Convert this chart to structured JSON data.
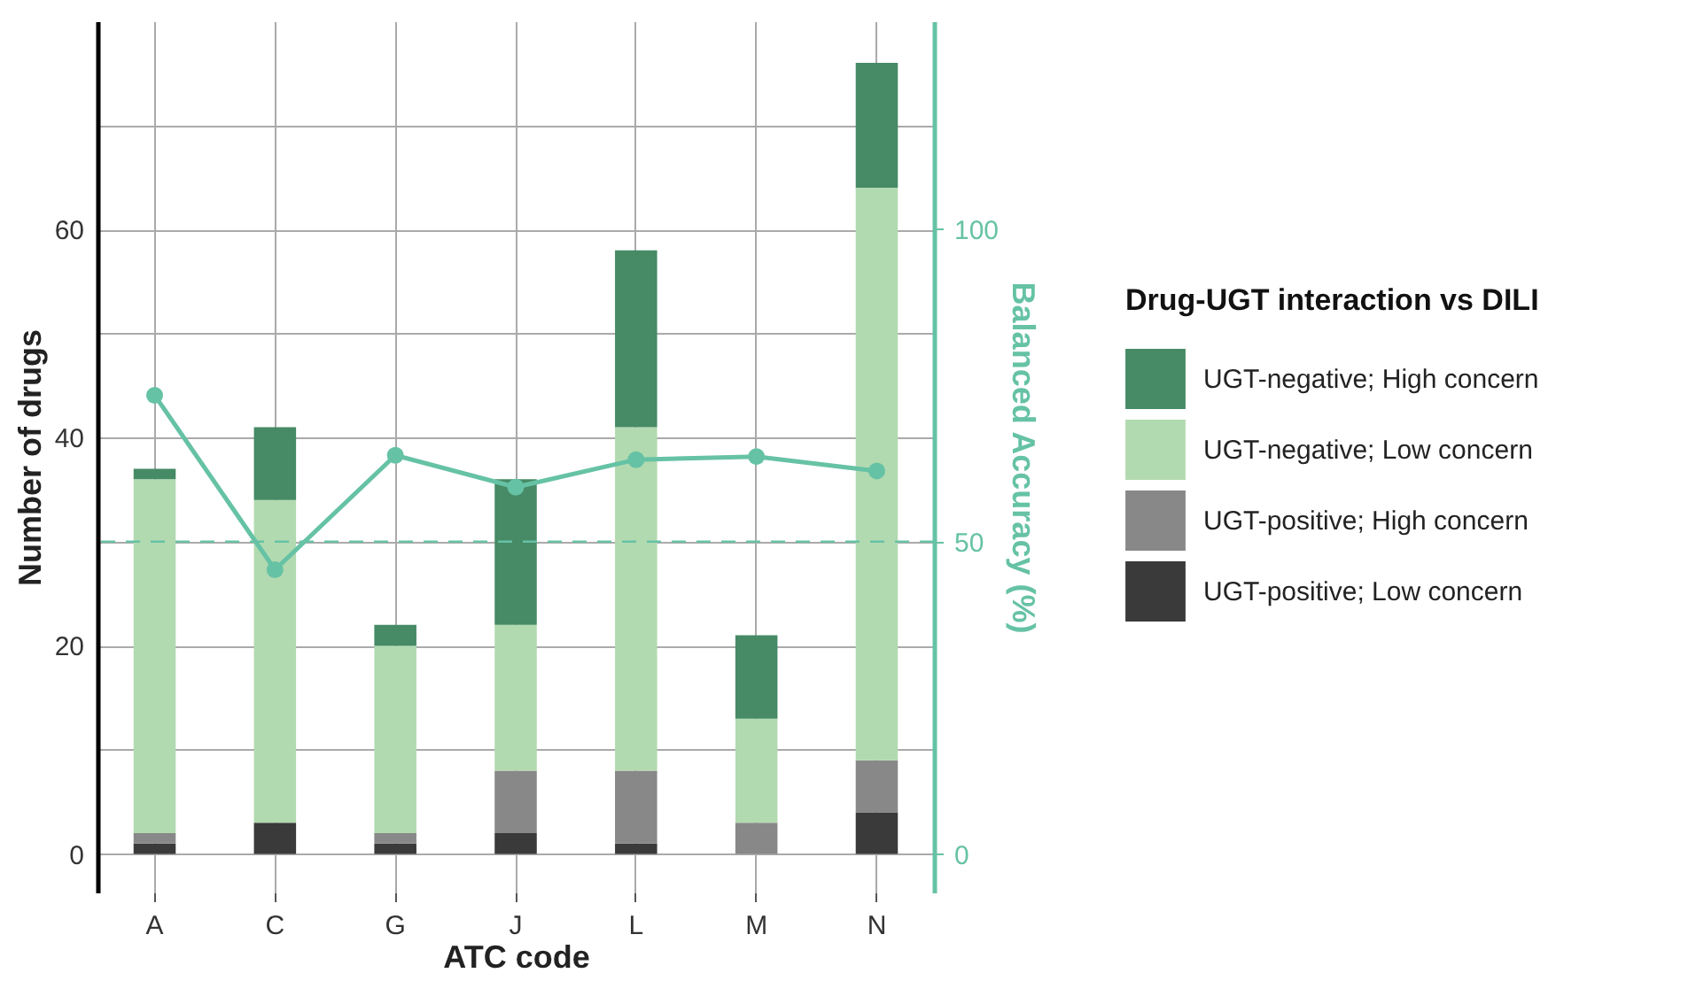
{
  "chart_data": {
    "type": "bar",
    "stacked": true,
    "xlabel": "ATC code",
    "ylabel": "Number of drugs",
    "y2label": "Balanced Accuracy (%)",
    "legend_title": "Drug-UGT interaction vs DILI",
    "categories": [
      "A",
      "C",
      "G",
      "J",
      "L",
      "M",
      "N"
    ],
    "series": [
      {
        "name": "UGT-positive; Low concern",
        "color": "#3a3a3a",
        "values": [
          1,
          3,
          1,
          2,
          1,
          0,
          4
        ]
      },
      {
        "name": "UGT-positive; High concern",
        "color": "#888888",
        "values": [
          1,
          0,
          1,
          6,
          7,
          3,
          5
        ]
      },
      {
        "name": "UGT-negative; Low concern",
        "color": "#b2dab0",
        "values": [
          34,
          31,
          18,
          14,
          33,
          10,
          55
        ]
      },
      {
        "name": "UGT-negative; High concern",
        "color": "#468a66",
        "values": [
          1,
          7,
          2,
          14,
          17,
          8,
          12
        ]
      },
      {
        "type": "line",
        "axis": "y2",
        "color": "#66c2a5",
        "marker": "circle",
        "values": [
          73.4,
          45.5,
          63.8,
          58.7,
          63.1,
          63.6,
          61.3
        ]
      }
    ],
    "ylim": [
      -3.7,
      80
    ],
    "yticks": [
      0,
      {
        "value": 10,
        "label": null
      },
      20,
      {
        "value": 30,
        "label": null
      },
      40,
      {
        "value": 50,
        "label": null
      },
      60,
      {
        "value": 70,
        "label": null
      }
    ],
    "y2lim": [
      -6.1,
      133.2
    ],
    "y2ticks": [
      0,
      50,
      100
    ],
    "ref_lines": [
      {
        "axis": "y2",
        "value": 50,
        "color": "#66c2a5",
        "line_style": "dashed"
      }
    ],
    "grid": true,
    "legend": "right"
  }
}
